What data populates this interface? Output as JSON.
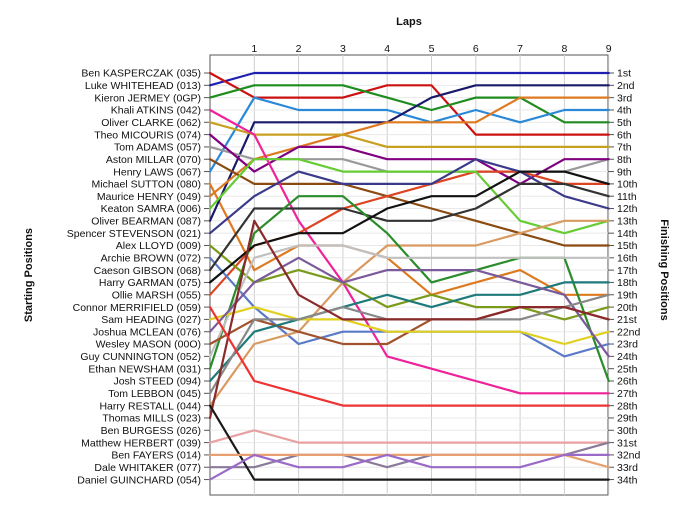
{
  "chart_data": {
    "type": "line",
    "title": "",
    "xlabel": "Laps",
    "ylabel_left": "Starting Positions",
    "ylabel_right": "Finishing Positions",
    "x": [
      0,
      1,
      2,
      3,
      4,
      5,
      6,
      7,
      8,
      9
    ],
    "x_tick_labels": [
      "1",
      "2",
      "3",
      "4",
      "5",
      "6",
      "7",
      "8",
      "9"
    ],
    "y_range": [
      1,
      34
    ],
    "grid": true,
    "drivers": [
      "Ben KASPERCZAK (035)",
      "Luke WHITEHEAD (013)",
      "Kieron JERMEY (0GP)",
      "Khali ATKINS (042)",
      "Oliver CLARKE (062)",
      "Theo MICOURIS (074)",
      "Tom ADAMS (057)",
      "Aston MILLAR (070)",
      "Henry LAWS (067)",
      "Michael SUTTON (080)",
      "Maurice HENRY (049)",
      "Keaton SAMRA (006)",
      "Oliver BEARMAN (087)",
      "Spencer STEVENSON (021)",
      "Alex LLOYD (009)",
      "Archie BROWN (072)",
      "Caeson GIBSON (068)",
      "Harry GARMAN (075)",
      "Ollie MARSH (055)",
      "Connor MERRIFIELD (059)",
      "Sam HEADING (027)",
      "Joshua MCLEAN (076)",
      "Wesley MASON (00O)",
      "Guy CUNNINGTON (052)",
      "Ethan NEWSHAM (031)",
      "Josh STEED (094)",
      "Tom LEBBON (045)",
      "Harry RESTALL (044)",
      "Thomas MILLS (023)",
      "Ben BURGESS (026)",
      "Matthew HERBERT (039)",
      "Ben FAYERS (014)",
      "Dale WHITAKER (077)",
      "Daniel GUINCHARD (054)"
    ],
    "finishing_labels": [
      "1st",
      "2nd",
      "3rd",
      "4th",
      "5th",
      "6th",
      "7th",
      "8th",
      "9th",
      "10th",
      "11th",
      "12th",
      "13th",
      "14th",
      "15th",
      "16th",
      "17th",
      "18th",
      "19th",
      "20th",
      "21st",
      "22nd",
      "23rd",
      "24th",
      "26th",
      "27th",
      "28th",
      "29th",
      "30th",
      "31st",
      "32nd",
      "33rd",
      "34th",
      "25th"
    ],
    "finishing_label_slots": [
      1,
      2,
      3,
      4,
      5,
      6,
      7,
      8,
      9,
      10,
      11,
      12,
      13,
      14,
      15,
      16,
      17,
      18,
      19,
      20,
      21,
      22,
      23,
      24,
      26,
      27,
      28,
      29,
      30,
      31,
      32,
      33,
      34,
      25
    ],
    "series": [
      {
        "color": "#2020b0",
        "values": [
          2,
          1,
          1,
          1,
          1,
          1,
          1,
          1,
          1,
          1
        ]
      },
      {
        "color": "#cc1111",
        "values": [
          1,
          3,
          3,
          3,
          2,
          2,
          6,
          6,
          6,
          6
        ]
      },
      {
        "color": "#1e8c1e",
        "values": [
          3,
          2,
          2,
          2,
          3,
          4,
          3,
          3,
          5,
          5
        ]
      },
      {
        "color": "#2a88d8",
        "values": [
          9,
          3,
          4,
          4,
          4,
          5,
          4,
          5,
          4,
          4
        ]
      },
      {
        "color": "#dd7a20",
        "values": [
          10,
          17,
          15,
          15,
          16,
          19,
          18,
          17,
          19,
          19
        ]
      },
      {
        "color": "#1a1a6a",
        "values": [
          13,
          5,
          5,
          5,
          5,
          3,
          2,
          2,
          2,
          2
        ]
      },
      {
        "color": "#999999",
        "values": [
          7,
          8,
          8,
          8,
          9,
          9,
          9,
          9,
          9,
          8
        ]
      },
      {
        "color": "#dd7a20",
        "values": [
          11,
          8,
          7,
          6,
          5,
          5,
          5,
          3,
          3,
          3
        ]
      },
      {
        "color": "#c8a020",
        "values": [
          5,
          6,
          6,
          6,
          7,
          7,
          7,
          7,
          7,
          7
        ]
      },
      {
        "color": "#8a4a10",
        "values": [
          8,
          10,
          10,
          10,
          11,
          12,
          13,
          14,
          15,
          15
        ]
      },
      {
        "color": "#800080",
        "values": [
          6,
          9,
          7,
          7,
          8,
          8,
          8,
          10,
          8,
          8
        ]
      },
      {
        "color": "#ee2299",
        "values": [
          4,
          6,
          13,
          18,
          24,
          25,
          26,
          27,
          27,
          27
        ]
      },
      {
        "color": "#dd4422",
        "values": [
          19,
          15,
          14,
          12,
          11,
          10,
          9,
          9,
          10,
          10
        ]
      },
      {
        "color": "#66cc33",
        "values": [
          12,
          8,
          8,
          9,
          9,
          9,
          9,
          13,
          14,
          13
        ]
      },
      {
        "color": "#3a3a8a",
        "values": [
          14,
          11,
          9,
          10,
          10,
          10,
          8,
          9,
          11,
          12
        ]
      },
      {
        "color": "#7a9a1a",
        "values": [
          15,
          18,
          17,
          18,
          20,
          19,
          20,
          20,
          21,
          20
        ]
      },
      {
        "color": "#5a7ac8",
        "values": [
          16,
          20,
          23,
          22,
          22,
          22,
          22,
          22,
          24,
          23
        ]
      },
      {
        "color": "#333333",
        "values": [
          17,
          12,
          12,
          12,
          13,
          13,
          12,
          10,
          10,
          11
        ]
      },
      {
        "color": "#d89a60",
        "values": [
          28,
          23,
          22,
          18,
          15,
          15,
          15,
          14,
          13,
          13
        ]
      },
      {
        "color": "#2a8c2a",
        "values": [
          25,
          14,
          11,
          11,
          14,
          18,
          17,
          16,
          16,
          26
        ]
      },
      {
        "color": "#111111",
        "values": [
          18,
          15,
          14,
          14,
          12,
          11,
          11,
          9,
          9,
          10
        ]
      },
      {
        "color": "#c0c0c0",
        "values": [
          24,
          16,
          15,
          15,
          16,
          16,
          16,
          16,
          16,
          16
        ]
      },
      {
        "color": "#a0522d",
        "values": [
          23,
          21,
          22,
          23,
          23,
          21,
          21,
          20,
          20,
          21
        ]
      },
      {
        "color": "#e0d020",
        "values": [
          21,
          20,
          21,
          21,
          22,
          22,
          22,
          22,
          23,
          22
        ]
      },
      {
        "color": "#1e7a7a",
        "values": [
          26,
          22,
          21,
          20,
          19,
          20,
          19,
          19,
          18,
          18
        ]
      },
      {
        "color": "#7a5a9a",
        "values": [
          22,
          18,
          16,
          18,
          17,
          17,
          17,
          18,
          19,
          24
        ]
      },
      {
        "color": "#888888",
        "values": [
          27,
          21,
          21,
          20,
          21,
          21,
          21,
          21,
          20,
          19
        ]
      },
      {
        "color": "#8a2a2a",
        "values": [
          29,
          13,
          19,
          21,
          21,
          21,
          21,
          20,
          20,
          21
        ]
      },
      {
        "color": "#ee3333",
        "values": [
          20,
          26,
          27,
          28,
          28,
          28,
          28,
          28,
          28,
          28
        ]
      },
      {
        "color": "#e8a0a0",
        "values": [
          31,
          30,
          31,
          31,
          31,
          31,
          31,
          31,
          31,
          31
        ]
      },
      {
        "color": "#8a7a9a",
        "values": [
          33,
          33,
          32,
          32,
          33,
          32,
          32,
          32,
          32,
          31
        ]
      },
      {
        "color": "#1a1a1a",
        "values": [
          28,
          34,
          34,
          34,
          34,
          34,
          34,
          34,
          34,
          34
        ]
      },
      {
        "color": "#e8a070",
        "values": [
          32,
          32,
          32,
          32,
          32,
          32,
          32,
          32,
          32,
          33
        ]
      },
      {
        "color": "#9a6ac8",
        "values": [
          34,
          32,
          33,
          33,
          32,
          33,
          33,
          33,
          32,
          32
        ]
      }
    ]
  }
}
